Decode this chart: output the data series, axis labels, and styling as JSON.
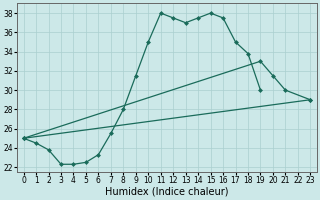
{
  "xlabel": "Humidex (Indice chaleur)",
  "background_color": "#cce8e8",
  "grid_color": "#aacfcf",
  "line_color": "#1a6b5a",
  "xlim": [
    -0.5,
    23.5
  ],
  "ylim": [
    21.5,
    39.0
  ],
  "yticks": [
    22,
    24,
    26,
    28,
    30,
    32,
    34,
    36,
    38
  ],
  "line1_x": [
    0,
    1,
    2,
    3,
    4,
    5,
    6,
    7,
    8,
    9,
    10,
    11,
    12,
    13,
    14,
    15,
    16,
    17,
    18,
    19
  ],
  "line1_y": [
    25.0,
    24.5,
    23.8,
    22.3,
    22.3,
    22.5,
    23.3,
    25.5,
    28.0,
    31.5,
    35.0,
    38.0,
    37.5,
    37.0,
    37.5,
    38.0,
    37.5,
    35.0,
    33.8,
    30.0
  ],
  "line2_x": [
    0,
    23
  ],
  "line2_y": [
    25.0,
    29.0
  ],
  "line3_x": [
    0,
    19,
    20,
    21,
    23
  ],
  "line3_y": [
    25.0,
    33.0,
    31.5,
    30.0,
    29.0
  ],
  "xlabel_fontsize": 7,
  "tick_fontsize": 5.5,
  "marker_size": 2.5,
  "linewidth": 0.9
}
